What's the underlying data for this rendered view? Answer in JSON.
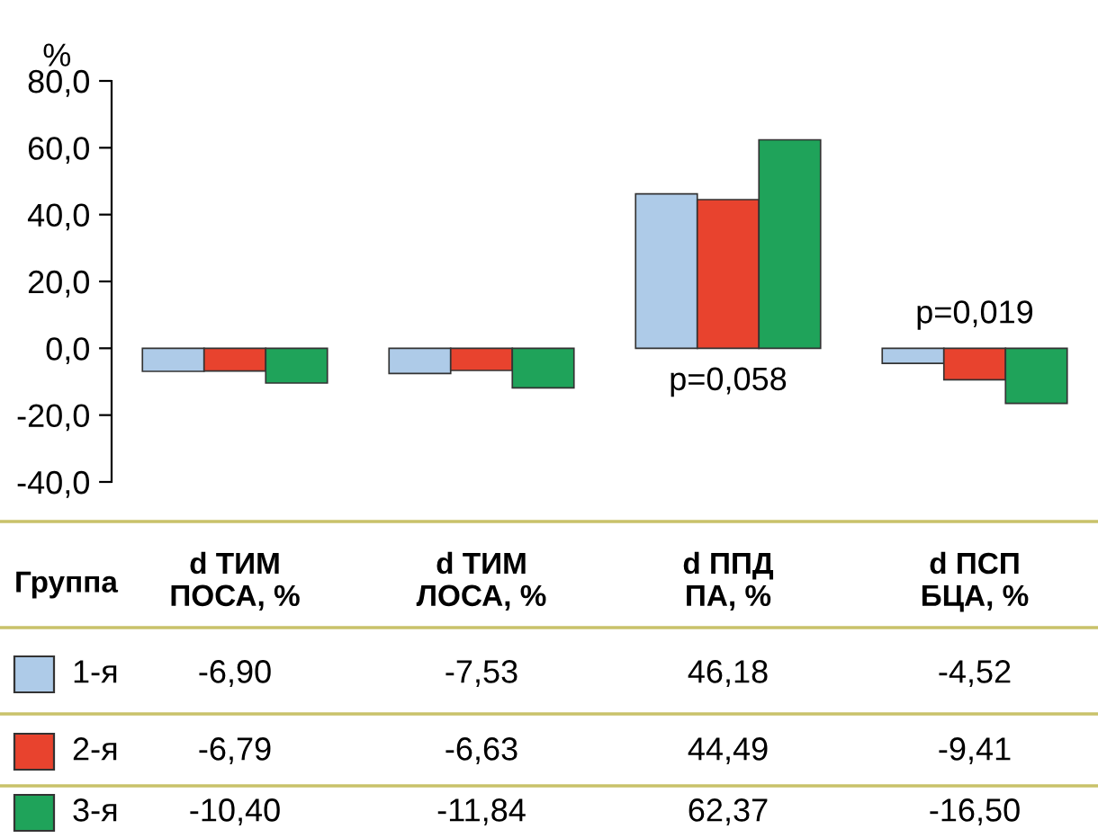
{
  "chart_data": {
    "type": "bar",
    "ylabel": "%",
    "legend_title": "Группа",
    "categories": [
      "d ТИМ\nПОСА, %",
      "d ТИМ\nЛОСА, %",
      "d ППД\nПА, %",
      "d ПСП\nБЦА, %"
    ],
    "series": [
      {
        "name": "1-я",
        "color": "#aecbe8",
        "values": [
          -6.9,
          -7.53,
          46.18,
          -4.52
        ],
        "value_labels": [
          "-6,90",
          "-7,53",
          "46,18",
          "-4,52"
        ]
      },
      {
        "name": "2-я",
        "color": "#e8432e",
        "values": [
          -6.79,
          -6.63,
          44.49,
          -9.41
        ],
        "value_labels": [
          "-6,79",
          "-6,63",
          "44,49",
          "-9,41"
        ]
      },
      {
        "name": "3-я",
        "color": "#1fa35a",
        "values": [
          -10.4,
          -11.84,
          62.37,
          -16.5
        ],
        "value_labels": [
          "-10,40",
          "-11,84",
          "62,37",
          "-16,50"
        ]
      }
    ],
    "ylim": [
      -40,
      80
    ],
    "yticks": [
      {
        "value": -40,
        "label": "-40,0"
      },
      {
        "value": -20,
        "label": "-20,0"
      },
      {
        "value": 0,
        "label": "0,0"
      },
      {
        "value": 20,
        "label": "20,0"
      },
      {
        "value": 40,
        "label": "40,0"
      },
      {
        "value": 60,
        "label": "60,0"
      },
      {
        "value": 80,
        "label": "80,0"
      }
    ],
    "annotations": [
      "p=0,058",
      "p=0,019"
    ],
    "grid": false,
    "legend": "bottom"
  }
}
